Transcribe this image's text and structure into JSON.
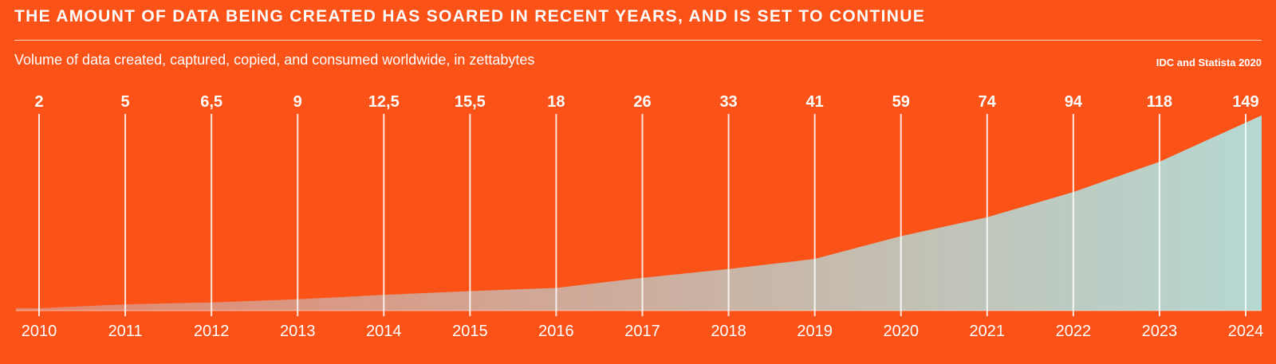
{
  "header": {
    "title": "THE AMOUNT OF DATA BEING CREATED HAS SOARED IN RECENT YEARS, AND IS SET TO CONTINUE",
    "subtitle": "Volume of data created, captured, copied, and consumed worldwide, in zettabytes",
    "source": "IDC and Statista 2020"
  },
  "colors": {
    "background": "#FB5218",
    "area_start": "#E5846A",
    "area_end": "#B5D8D2",
    "text": "#ffffff"
  },
  "chart_data": {
    "type": "area",
    "title": "THE AMOUNT OF DATA BEING CREATED HAS SOARED IN RECENT YEARS, AND IS SET TO CONTINUE",
    "subtitle": "Volume of data created, captured, copied, and consumed worldwide, in zettabytes",
    "xlabel": "",
    "ylabel": "",
    "categories": [
      "2010",
      "2011",
      "2012",
      "2013",
      "2014",
      "2015",
      "2016",
      "2017",
      "2018",
      "2019",
      "2020",
      "2021",
      "2022",
      "2023",
      "2024"
    ],
    "values": [
      2,
      5,
      6.5,
      9,
      12.5,
      15.5,
      18,
      26,
      33,
      41,
      59,
      74,
      94,
      118,
      149
    ],
    "value_labels": [
      "2",
      "5",
      "6,5",
      "9",
      "12,5",
      "15,5",
      "18",
      "26",
      "33",
      "41",
      "59",
      "74",
      "94",
      "118",
      "149"
    ],
    "ylim": [
      0,
      149
    ],
    "grid": false,
    "legend": "none"
  }
}
